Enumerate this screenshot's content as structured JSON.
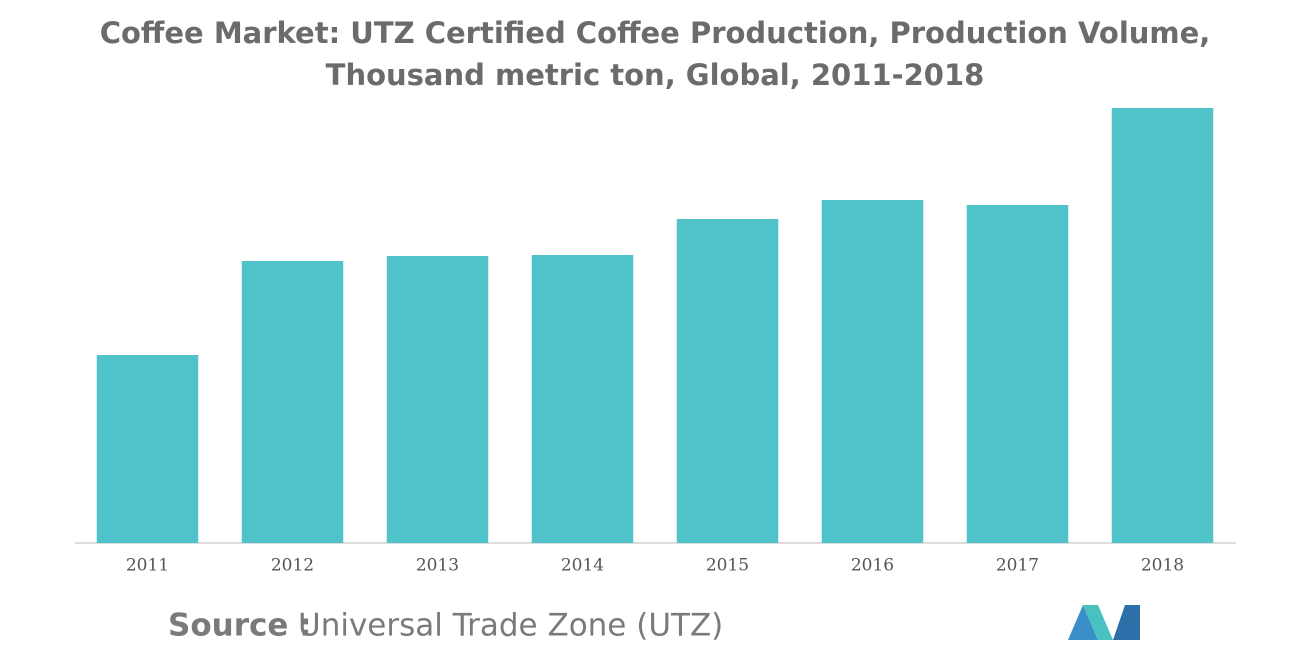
{
  "chart_data": {
    "type": "bar",
    "title": "Coffee Market: UTZ Certified Coffee Production, Production Volume, Thousand metric ton, Global, 2011-2018",
    "categories": [
      "2011",
      "2012",
      "2013",
      "2014",
      "2015",
      "2016",
      "2017",
      "2018"
    ],
    "values": [
      376,
      564,
      574,
      576,
      648,
      686,
      676,
      870
    ],
    "color": "#4fc3c9",
    "ylim": [
      0,
      880
    ],
    "source_label": "Source :",
    "source": "Universal Trade Zone (UTZ)"
  }
}
